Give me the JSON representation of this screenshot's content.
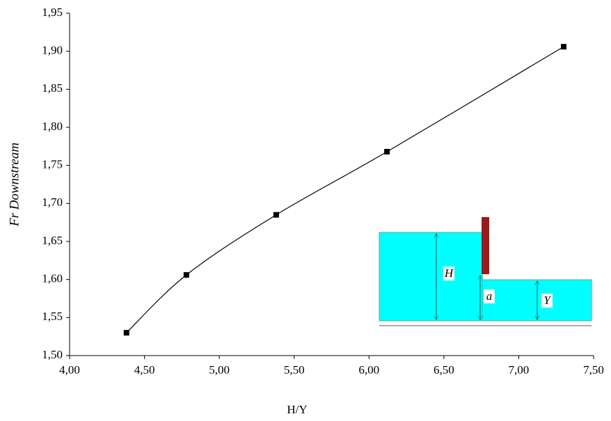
{
  "chart_data": {
    "type": "line",
    "x_label": "H/Y",
    "y_label": "Fr Downstream",
    "x": [
      4.38,
      4.78,
      5.38,
      6.12,
      7.3
    ],
    "values": [
      1.53,
      1.606,
      1.685,
      1.768,
      1.906
    ],
    "color": "#000000",
    "smooth": true,
    "marker": "square",
    "xlim": [
      4.0,
      7.5
    ],
    "xticks": [
      {
        "value": 4.0,
        "label": "4,00"
      },
      {
        "value": 4.5,
        "label": "4,50"
      },
      {
        "value": 5.0,
        "label": "5,00"
      },
      {
        "value": 5.5,
        "label": "5,50"
      },
      {
        "value": 6.0,
        "label": "6,00"
      },
      {
        "value": 6.5,
        "label": "6,50"
      },
      {
        "value": 7.0,
        "label": "7,00"
      },
      {
        "value": 7.5,
        "label": "7,50"
      }
    ],
    "ylim": [
      1.5,
      1.95
    ],
    "yticks": [
      {
        "value": 1.5,
        "label": "1,50"
      },
      {
        "value": 1.55,
        "label": "1,55"
      },
      {
        "value": 1.6,
        "label": "1,60"
      },
      {
        "value": 1.65,
        "label": "1,65"
      },
      {
        "value": 1.7,
        "label": "1,70"
      },
      {
        "value": 1.75,
        "label": "1,75"
      },
      {
        "value": 1.8,
        "label": "1,80"
      },
      {
        "value": 1.85,
        "label": "1,85"
      },
      {
        "value": 1.9,
        "label": "1,90"
      },
      {
        "value": 1.95,
        "label": "1,95"
      }
    ],
    "grid": false
  },
  "inset": {
    "labels": [
      "H",
      "a",
      "Y"
    ]
  }
}
